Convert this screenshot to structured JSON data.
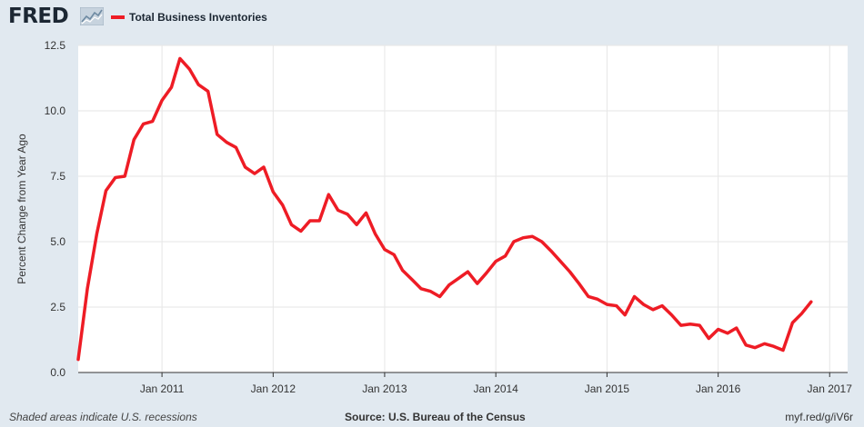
{
  "header": {
    "logo_text": "FRED",
    "logo_icon": "fred-chart-icon",
    "legend_label": "Total Business Inventories",
    "series_color": "#ee1c25"
  },
  "footer": {
    "recessions_note": "Shaded areas indicate U.S. recessions",
    "source": "Source: U.S. Bureau of the Census",
    "short_url": "myf.red/g/iV6r"
  },
  "chart_data": {
    "type": "line",
    "title": "",
    "xlabel": "",
    "ylabel": "Percent Change from Year Ago",
    "xlim": [
      "2010-04-01",
      "2017-03-01"
    ],
    "ylim": [
      0,
      12.5
    ],
    "yticks": [
      "0.0",
      "2.5",
      "5.0",
      "7.5",
      "10.0",
      "12.5"
    ],
    "xticks": [
      {
        "date": "2011-01-01",
        "label": "Jan 2011"
      },
      {
        "date": "2012-01-01",
        "label": "Jan 2012"
      },
      {
        "date": "2013-01-01",
        "label": "Jan 2013"
      },
      {
        "date": "2014-01-01",
        "label": "Jan 2014"
      },
      {
        "date": "2015-01-01",
        "label": "Jan 2015"
      },
      {
        "date": "2016-01-01",
        "label": "Jan 2016"
      },
      {
        "date": "2017-01-01",
        "label": "Jan 2017"
      }
    ],
    "grid": true,
    "legend": "top-left",
    "series": [
      {
        "name": "Total Business Inventories",
        "color": "#ee1c25",
        "start": "2010-04",
        "values": [
          0.5,
          3.2,
          5.3,
          6.95,
          7.45,
          7.5,
          8.9,
          9.5,
          9.6,
          10.4,
          10.9,
          12.0,
          11.6,
          11.0,
          10.75,
          9.1,
          8.8,
          8.6,
          7.85,
          7.6,
          7.85,
          6.9,
          6.4,
          5.65,
          5.4,
          5.8,
          5.8,
          6.8,
          6.2,
          6.05,
          5.65,
          6.1,
          5.3,
          4.7,
          4.5,
          3.9,
          3.55,
          3.2,
          3.1,
          2.9,
          3.35,
          3.6,
          3.85,
          3.4,
          3.8,
          4.25,
          4.45,
          5.0,
          5.15,
          5.2,
          5.0,
          4.65,
          4.25,
          3.85,
          3.4,
          2.9,
          2.8,
          2.6,
          2.55,
          2.2,
          2.9,
          2.6,
          2.4,
          2.55,
          2.2,
          1.8,
          1.85,
          1.8,
          1.3,
          1.65,
          1.5,
          1.7,
          1.05,
          0.95,
          1.1,
          1.0,
          0.85,
          1.9,
          2.25,
          2.7
        ]
      }
    ]
  }
}
